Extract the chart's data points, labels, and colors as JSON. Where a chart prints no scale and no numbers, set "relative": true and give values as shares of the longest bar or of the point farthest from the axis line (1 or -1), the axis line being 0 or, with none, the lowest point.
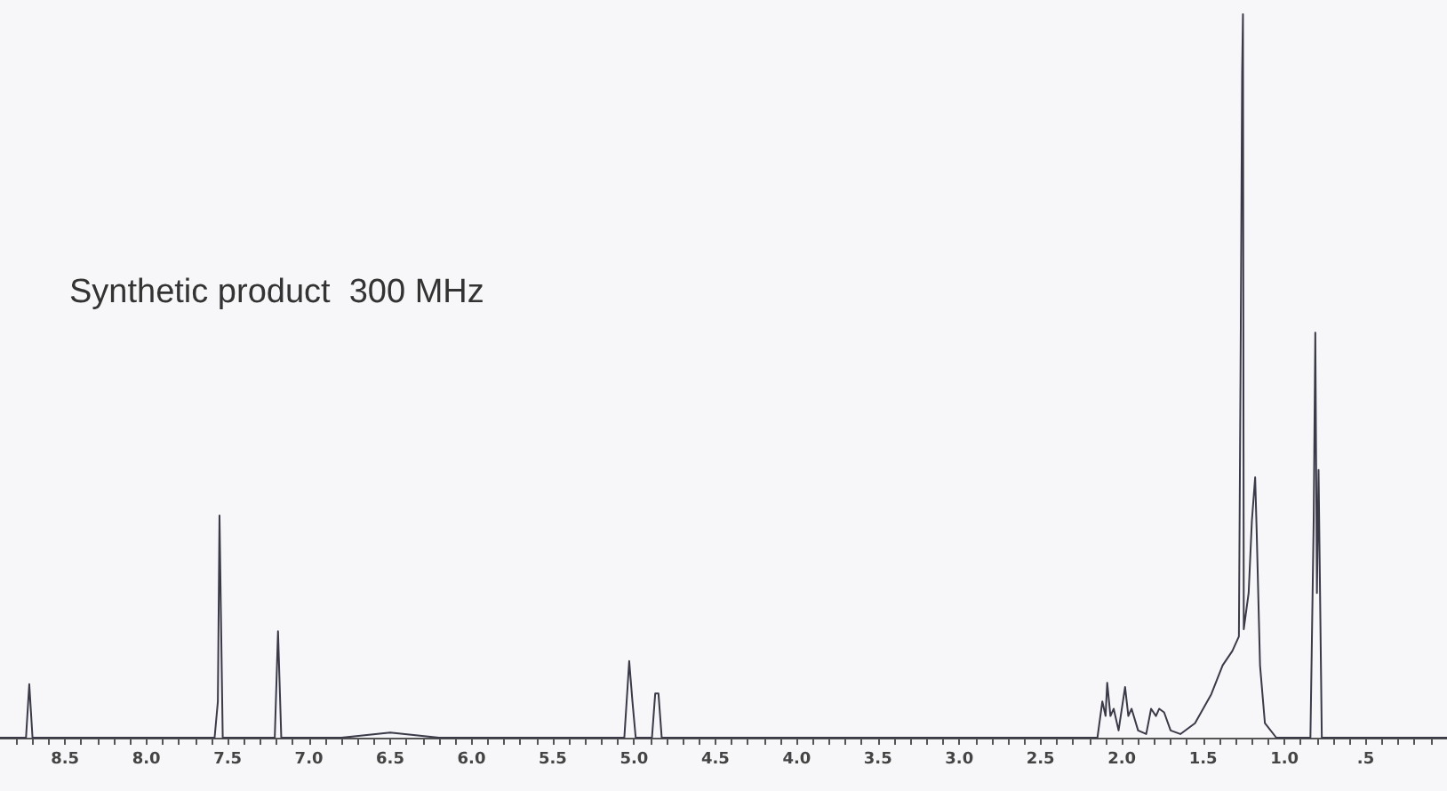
{
  "chart_data": {
    "type": "line",
    "title": "Synthetic product  300 MHz",
    "relative": true,
    "marker": "none",
    "line_style": "solid",
    "grid": false,
    "tick_labels": "x",
    "xlim": [
      8.9,
      0
    ],
    "xticks": [
      {
        "value": 8.8,
        "label": null
      },
      {
        "value": 8.7,
        "label": null
      },
      {
        "value": 8.6,
        "label": null
      },
      {
        "value": 8.5,
        "label": "8.5"
      },
      {
        "value": 8.4,
        "label": null
      },
      {
        "value": 8.3,
        "label": null
      },
      {
        "value": 8.2,
        "label": null
      },
      {
        "value": 8.1,
        "label": null
      },
      {
        "value": 8.0,
        "label": "8.0"
      },
      {
        "value": 7.9,
        "label": null
      },
      {
        "value": 7.8,
        "label": null
      },
      {
        "value": 7.7,
        "label": null
      },
      {
        "value": 7.6,
        "label": null
      },
      {
        "value": 7.5,
        "label": "7.5"
      },
      {
        "value": 7.4,
        "label": null
      },
      {
        "value": 7.3,
        "label": null
      },
      {
        "value": 7.2,
        "label": null
      },
      {
        "value": 7.1,
        "label": null
      },
      {
        "value": 7.0,
        "label": "7.0"
      },
      {
        "value": 6.9,
        "label": null
      },
      {
        "value": 6.8,
        "label": null
      },
      {
        "value": 6.7,
        "label": null
      },
      {
        "value": 6.6,
        "label": null
      },
      {
        "value": 6.5,
        "label": "6.5"
      },
      {
        "value": 6.4,
        "label": null
      },
      {
        "value": 6.3,
        "label": null
      },
      {
        "value": 6.2,
        "label": null
      },
      {
        "value": 6.1,
        "label": null
      },
      {
        "value": 6.0,
        "label": "6.0"
      },
      {
        "value": 5.9,
        "label": null
      },
      {
        "value": 5.8,
        "label": null
      },
      {
        "value": 5.7,
        "label": null
      },
      {
        "value": 5.6,
        "label": null
      },
      {
        "value": 5.5,
        "label": "5.5"
      },
      {
        "value": 5.4,
        "label": null
      },
      {
        "value": 5.3,
        "label": null
      },
      {
        "value": 5.2,
        "label": null
      },
      {
        "value": 5.1,
        "label": null
      },
      {
        "value": 5.0,
        "label": "5.0"
      },
      {
        "value": 4.9,
        "label": null
      },
      {
        "value": 4.8,
        "label": null
      },
      {
        "value": 4.7,
        "label": null
      },
      {
        "value": 4.6,
        "label": null
      },
      {
        "value": 4.5,
        "label": "4.5"
      },
      {
        "value": 4.4,
        "label": null
      },
      {
        "value": 4.3,
        "label": null
      },
      {
        "value": 4.2,
        "label": null
      },
      {
        "value": 4.1,
        "label": null
      },
      {
        "value": 4.0,
        "label": "4.0"
      },
      {
        "value": 3.9,
        "label": null
      },
      {
        "value": 3.8,
        "label": null
      },
      {
        "value": 3.7,
        "label": null
      },
      {
        "value": 3.6,
        "label": null
      },
      {
        "value": 3.5,
        "label": "3.5"
      },
      {
        "value": 3.4,
        "label": null
      },
      {
        "value": 3.3,
        "label": null
      },
      {
        "value": 3.2,
        "label": null
      },
      {
        "value": 3.1,
        "label": null
      },
      {
        "value": 3.0,
        "label": "3.0"
      },
      {
        "value": 2.9,
        "label": null
      },
      {
        "value": 2.8,
        "label": null
      },
      {
        "value": 2.7,
        "label": null
      },
      {
        "value": 2.6,
        "label": null
      },
      {
        "value": 2.5,
        "label": "2.5"
      },
      {
        "value": 2.4,
        "label": null
      },
      {
        "value": 2.3,
        "label": null
      },
      {
        "value": 2.2,
        "label": null
      },
      {
        "value": 2.1,
        "label": null
      },
      {
        "value": 2.0,
        "label": "2.0"
      },
      {
        "value": 1.9,
        "label": null
      },
      {
        "value": 1.8,
        "label": null
      },
      {
        "value": 1.7,
        "label": null
      },
      {
        "value": 1.6,
        "label": null
      },
      {
        "value": 1.5,
        "label": "1.5"
      },
      {
        "value": 1.4,
        "label": null
      },
      {
        "value": 1.3,
        "label": null
      },
      {
        "value": 1.2,
        "label": null
      },
      {
        "value": 1.1,
        "label": null
      },
      {
        "value": 1.0,
        "label": "1.0"
      },
      {
        "value": 0.9,
        "label": null
      },
      {
        "value": 0.8,
        "label": null
      },
      {
        "value": 0.7,
        "label": null
      },
      {
        "value": 0.6,
        "label": null
      },
      {
        "value": 0.5,
        "label": ".5"
      },
      {
        "value": 0.4,
        "label": null
      },
      {
        "value": 0.3,
        "label": null
      },
      {
        "value": 0.2,
        "label": null
      },
      {
        "value": 0.1,
        "label": null
      }
    ],
    "series": [
      {
        "color": "#3a3a48",
        "x": [
          8.9,
          8.74,
          8.72,
          8.7,
          7.58,
          7.56,
          7.55,
          7.53,
          7.21,
          7.19,
          7.17,
          6.8,
          6.5,
          6.2,
          5.06,
          5.04,
          5.03,
          5.01,
          4.99,
          4.89,
          4.87,
          4.85,
          4.83,
          2.15,
          2.12,
          2.1,
          2.09,
          2.07,
          2.05,
          2.02,
          2.0,
          1.98,
          1.96,
          1.94,
          1.9,
          1.85,
          1.82,
          1.79,
          1.77,
          1.74,
          1.7,
          1.64,
          1.55,
          1.45,
          1.38,
          1.32,
          1.28,
          1.27,
          1.26,
          1.255,
          1.25,
          1.22,
          1.2,
          1.18,
          1.17,
          1.15,
          1.12,
          1.05,
          0.84,
          0.82,
          0.81,
          0.8,
          0.79,
          0.77,
          0.6,
          0.0
        ],
        "values": [
          0,
          0,
          0.074,
          0,
          0,
          0.05,
          0.307,
          0,
          0,
          0.147,
          0,
          0,
          0.007,
          0,
          0,
          0.07,
          0.106,
          0.05,
          0,
          0,
          0.061,
          0.061,
          0,
          0,
          0.05,
          0.03,
          0.076,
          0.03,
          0.04,
          0.01,
          0.04,
          0.07,
          0.03,
          0.04,
          0.01,
          0.005,
          0.04,
          0.03,
          0.04,
          0.035,
          0.01,
          0.005,
          0.02,
          0.06,
          0.1,
          0.12,
          0.14,
          0.5,
          0.92,
          1.0,
          0.15,
          0.2,
          0.3,
          0.36,
          0.28,
          0.1,
          0.02,
          0,
          0,
          0.3,
          0.56,
          0.2,
          0.37,
          0,
          0,
          0
        ]
      }
    ]
  }
}
